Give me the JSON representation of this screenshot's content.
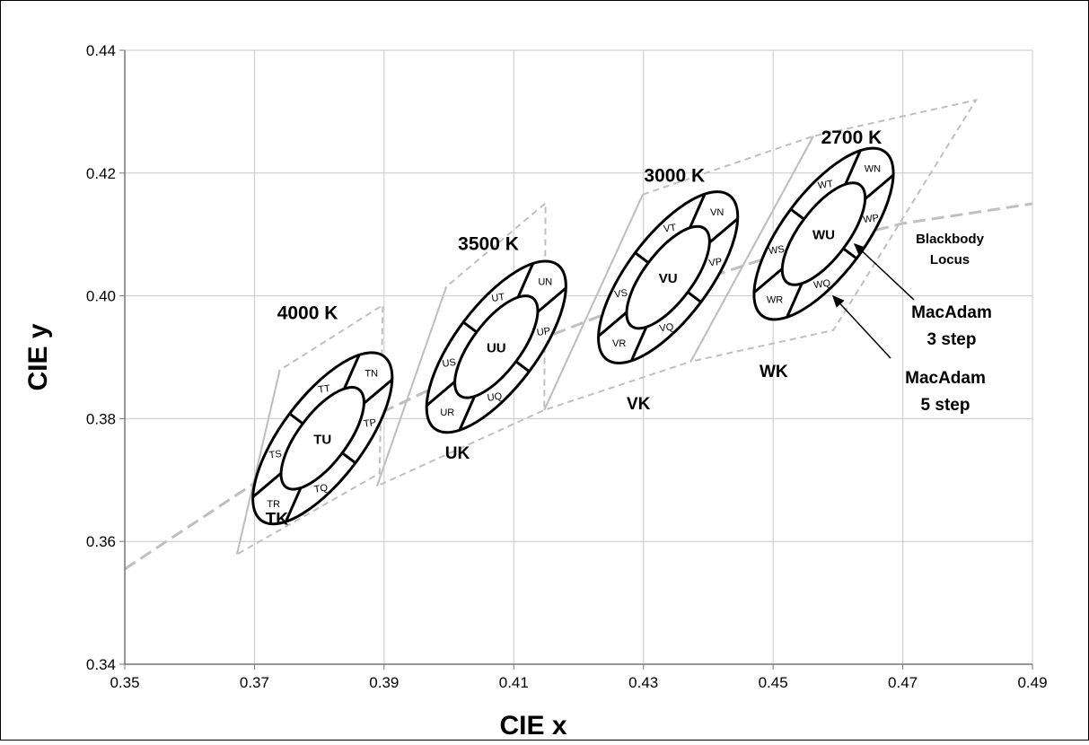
{
  "chart_data": {
    "type": "scatter",
    "xlabel": "CIE x",
    "ylabel": "CIE y",
    "xlim": [
      0.35,
      0.49
    ],
    "ylim": [
      0.34,
      0.44
    ],
    "x_ticks": [
      "0.35",
      "0.37",
      "0.39",
      "0.41",
      "0.43",
      "0.45",
      "0.47",
      "0.49"
    ],
    "y_ticks": [
      "0.34",
      "0.36",
      "0.38",
      "0.40",
      "0.42",
      "0.44"
    ],
    "grid": true,
    "colors": {
      "grid": "#c8c8c8",
      "quadrangle": "#bfbfbf",
      "locus": "#bfbfbf",
      "ellipse": "#000000"
    },
    "blackbody_locus": {
      "label": [
        "Blackbody",
        "Locus"
      ],
      "x": [
        0.35,
        0.37,
        0.39,
        0.41,
        0.43,
        0.45,
        0.47,
        0.49
      ],
      "y": [
        0.3555,
        0.3695,
        0.3812,
        0.3912,
        0.3995,
        0.4065,
        0.4118,
        0.415
      ]
    },
    "cct_bins": [
      {
        "cct": "4000 K",
        "k_bin": "TK",
        "prefix": "T",
        "center": [
          0.3805,
          0.3768
        ],
        "step3": [
          0.0094,
          0.004
        ],
        "step5": [
          0.0158,
          0.0067
        ],
        "angle": 53.2,
        "quad": [
          [
            0.3673,
            0.3579
          ],
          [
            0.3739,
            0.3879
          ],
          [
            0.3898,
            0.3985
          ],
          [
            0.3893,
            0.3711
          ]
        ],
        "cct_label": [
          0.3735,
          0.3962
        ],
        "k_label": [
          0.3717,
          0.3627
        ]
      },
      {
        "cct": "3500 K",
        "k_bin": "UK",
        "prefix": "U",
        "center": [
          0.4073,
          0.3917
        ],
        "step3": [
          0.0094,
          0.004
        ],
        "step5": [
          0.0158,
          0.0067
        ],
        "angle": 53.2,
        "quad": [
          [
            0.3889,
            0.369
          ],
          [
            0.3996,
            0.4015
          ],
          [
            0.4149,
            0.4151
          ],
          [
            0.4147,
            0.3814
          ]
        ],
        "cct_label": [
          0.4014,
          0.4075
        ],
        "k_label": [
          0.3994,
          0.3735
        ]
      },
      {
        "cct": "3000 K",
        "k_bin": "VK",
        "prefix": "V",
        "center": [
          0.4338,
          0.403
        ],
        "step3": [
          0.0094,
          0.004
        ],
        "step5": [
          0.0158,
          0.0067
        ],
        "angle": 53.2,
        "quad": [
          [
            0.4147,
            0.3814
          ],
          [
            0.4299,
            0.4165
          ],
          [
            0.4562,
            0.426
          ],
          [
            0.4373,
            0.3893
          ]
        ],
        "cct_label": [
          0.4301,
          0.4186
        ],
        "k_label": [
          0.4274,
          0.3815
        ]
      },
      {
        "cct": "2700 K",
        "k_bin": "WK",
        "prefix": "W",
        "center": [
          0.4578,
          0.4101
        ],
        "step3": [
          0.0094,
          0.004
        ],
        "step5": [
          0.0158,
          0.0067
        ],
        "angle": 53.2,
        "quad": [
          [
            0.4373,
            0.3893
          ],
          [
            0.4562,
            0.426
          ],
          [
            0.4813,
            0.4319
          ],
          [
            0.4593,
            0.3944
          ]
        ],
        "cct_label": [
          0.4574,
          0.4248
        ],
        "k_label": [
          0.4479,
          0.3868
        ]
      }
    ],
    "segment_labels": [
      "N",
      "T",
      "S",
      "R",
      "Q",
      "P"
    ],
    "center_label_suffix": "U",
    "annotations": {
      "macadam3": {
        "lines": [
          "MacAdam",
          "3 step"
        ]
      },
      "macadam5": {
        "lines": [
          "MacAdam",
          "5 step"
        ]
      }
    }
  }
}
